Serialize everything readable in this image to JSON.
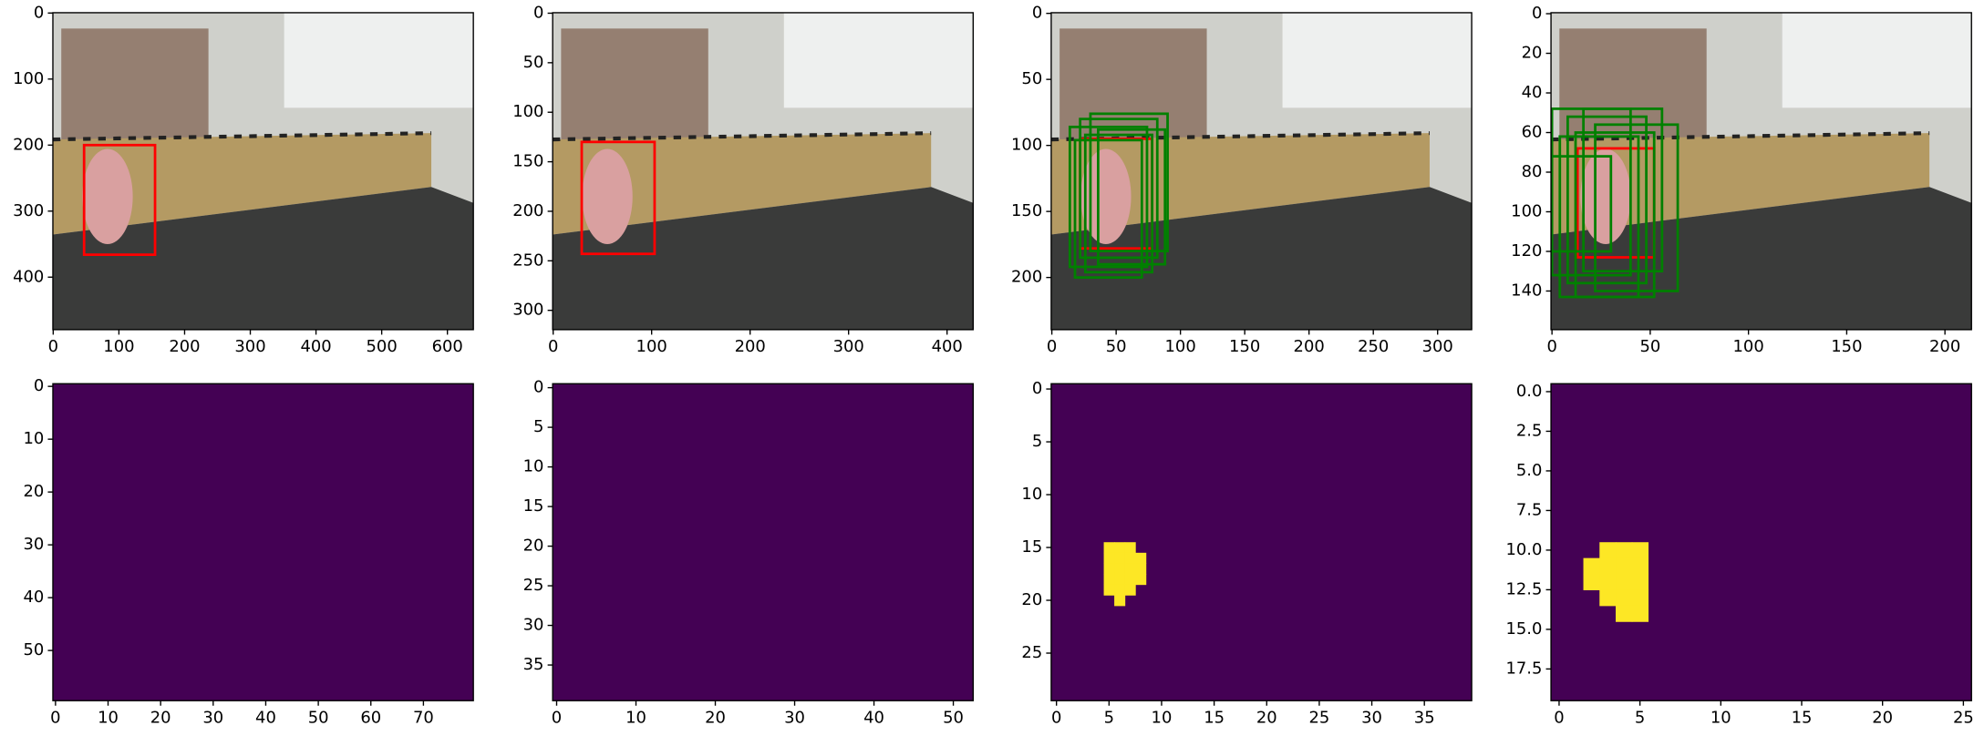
{
  "chart_data": [
    {
      "type": "image",
      "xlim": [
        -0.5,
        639.5
      ],
      "ylim": [
        479.5,
        -0.5
      ],
      "xticks": [
        0,
        100,
        200,
        300,
        400,
        500,
        600
      ],
      "yticks": [
        0,
        100,
        200,
        300,
        400
      ],
      "box_sets": [
        {
          "color": "#ff0000",
          "boxes": [
            [
              47,
              200,
              155,
              366
            ]
          ]
        }
      ]
    },
    {
      "type": "image",
      "xlim": [
        -0.5,
        426.5
      ],
      "ylim": [
        319.5,
        -0.5
      ],
      "xticks": [
        0,
        100,
        200,
        300,
        400
      ],
      "yticks": [
        0,
        50,
        100,
        150,
        200,
        250,
        300
      ],
      "box_sets": [
        {
          "color": "#ff0000",
          "boxes": [
            [
              29,
              130,
              103,
              243
            ]
          ]
        }
      ]
    },
    {
      "type": "image",
      "xlim": [
        -0.5,
        326.5
      ],
      "ylim": [
        239.5,
        -0.5
      ],
      "xticks": [
        0,
        50,
        100,
        150,
        200,
        250,
        300
      ],
      "yticks": [
        0,
        50,
        100,
        150,
        200
      ],
      "box_sets": [
        {
          "color": "#ff0000",
          "boxes": [
            [
              22,
              95,
              78,
              178
            ]
          ]
        },
        {
          "color": "#008000",
          "boxes": [
            [
              14,
              86,
              74,
              192
            ],
            [
              22,
              80,
              82,
              185
            ],
            [
              30,
              76,
              90,
              180
            ],
            [
              18,
              96,
              70,
              200
            ],
            [
              26,
              92,
              78,
              196
            ],
            [
              36,
              88,
              88,
              190
            ]
          ]
        }
      ]
    },
    {
      "type": "image",
      "xlim": [
        -0.5,
        213.5
      ],
      "ylim": [
        159.5,
        -0.5
      ],
      "xticks": [
        0,
        50,
        100,
        150,
        200
      ],
      "yticks": [
        0,
        20,
        40,
        60,
        80,
        100,
        120,
        140
      ],
      "box_sets": [
        {
          "color": "#ff0000",
          "boxes": [
            [
              13,
              68,
              52,
              123
            ]
          ]
        },
        {
          "color": "#008000",
          "boxes": [
            [
              0,
              48,
              40,
              132
            ],
            [
              8,
              52,
              48,
              136
            ],
            [
              16,
              48,
              56,
              130
            ],
            [
              4,
              62,
              44,
              143
            ],
            [
              12,
              60,
              52,
              143
            ],
            [
              22,
              56,
              64,
              140
            ],
            [
              0,
              72,
              30,
              120
            ]
          ]
        }
      ]
    },
    {
      "type": "heatmap",
      "xlim": [
        -0.5,
        79.5
      ],
      "ylim": [
        59.5,
        -0.5
      ],
      "background": "#440154",
      "color": "#fde725",
      "xticks": [
        0,
        10,
        20,
        30,
        40,
        50,
        60,
        70
      ],
      "yticks": [
        0,
        10,
        20,
        30,
        40,
        50
      ],
      "cells": []
    },
    {
      "type": "heatmap",
      "xlim": [
        -0.5,
        52.5
      ],
      "ylim": [
        39.5,
        -0.5
      ],
      "background": "#440154",
      "color": "#fde725",
      "xticks": [
        0,
        10,
        20,
        30,
        40,
        50
      ],
      "yticks": [
        0,
        5,
        10,
        15,
        20,
        25,
        30,
        35
      ],
      "cells": []
    },
    {
      "type": "heatmap",
      "xlim": [
        -0.5,
        39.5
      ],
      "ylim": [
        29.5,
        -0.5
      ],
      "background": "#440154",
      "color": "#fde725",
      "xticks": [
        0,
        5,
        10,
        15,
        20,
        25,
        30,
        35
      ],
      "yticks": [
        0,
        5,
        10,
        15,
        20,
        25
      ],
      "cells": [
        [
          15,
          5
        ],
        [
          15,
          6
        ],
        [
          15,
          7
        ],
        [
          16,
          5
        ],
        [
          16,
          6
        ],
        [
          16,
          7
        ],
        [
          16,
          8
        ],
        [
          17,
          5
        ],
        [
          17,
          6
        ],
        [
          17,
          7
        ],
        [
          17,
          8
        ],
        [
          18,
          5
        ],
        [
          18,
          6
        ],
        [
          18,
          7
        ],
        [
          18,
          8
        ],
        [
          19,
          5
        ],
        [
          19,
          6
        ],
        [
          19,
          7
        ],
        [
          20,
          6
        ]
      ]
    },
    {
      "type": "heatmap",
      "xlim": [
        -0.5,
        25.5
      ],
      "ylim": [
        19.5,
        -0.5
      ],
      "background": "#440154",
      "color": "#fde725",
      "xticks": [
        0,
        5,
        10,
        15,
        20,
        25
      ],
      "yticks": [
        {
          "value": 0,
          "label": "0.0"
        },
        {
          "value": 2.5,
          "label": "2.5"
        },
        {
          "value": 5,
          "label": "5.0"
        },
        {
          "value": 7.5,
          "label": "7.5"
        },
        {
          "value": 10,
          "label": "10.0"
        },
        {
          "value": 12.5,
          "label": "12.5"
        },
        {
          "value": 15,
          "label": "15.0"
        },
        {
          "value": 17.5,
          "label": "17.5"
        }
      ],
      "cells": [
        [
          10,
          3
        ],
        [
          10,
          4
        ],
        [
          10,
          5
        ],
        [
          11,
          2
        ],
        [
          11,
          3
        ],
        [
          11,
          4
        ],
        [
          11,
          5
        ],
        [
          12,
          2
        ],
        [
          12,
          3
        ],
        [
          12,
          4
        ],
        [
          12,
          5
        ],
        [
          13,
          3
        ],
        [
          13,
          4
        ],
        [
          13,
          5
        ],
        [
          14,
          4
        ],
        [
          14,
          5
        ]
      ]
    }
  ]
}
